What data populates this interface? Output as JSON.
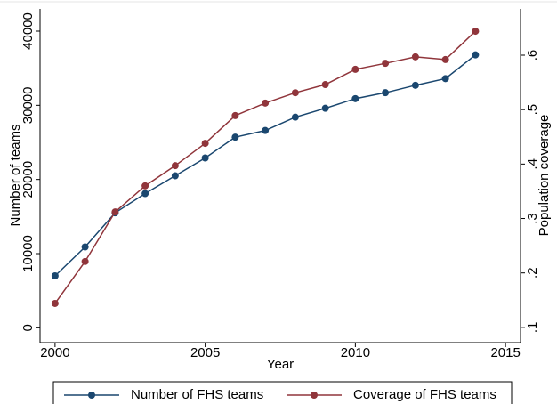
{
  "chart_data": {
    "type": "line",
    "x_label": "Year",
    "y_label": "Number of teams",
    "y2_label": "Population coverage",
    "x": [
      2000,
      2001,
      2002,
      2003,
      2004,
      2005,
      2006,
      2007,
      2008,
      2009,
      2010,
      2011,
      2012,
      2013,
      2014
    ],
    "series": [
      {
        "name": "Number of FHS teams",
        "color": "#1a476f",
        "axis": "y",
        "values": [
          7000,
          10900,
          15500,
          18100,
          20500,
          22900,
          25700,
          26600,
          28400,
          29600,
          30900,
          31700,
          32700,
          33600,
          36800
        ]
      },
      {
        "name": "Coverage of FHS teams",
        "color": "#90353b",
        "axis": "y2",
        "values": [
          0.144,
          0.221,
          0.312,
          0.36,
          0.397,
          0.438,
          0.489,
          0.512,
          0.531,
          0.546,
          0.574,
          0.585,
          0.597,
          0.592,
          0.644
        ]
      }
    ],
    "xlim": [
      1999.5,
      2015.5
    ],
    "xticks": [
      2000,
      2005,
      2010,
      2015
    ],
    "ylim": [
      -2000,
      43000
    ],
    "yticks": [
      0,
      10000,
      20000,
      30000,
      40000
    ],
    "y2lim": [
      0.072,
      0.685
    ],
    "y2ticks": [
      {
        "value": 0.1,
        "label": ".1"
      },
      {
        "value": 0.2,
        "label": ".2"
      },
      {
        "value": 0.3,
        "label": ".3"
      },
      {
        "value": 0.4,
        "label": ".4"
      },
      {
        "value": 0.5,
        "label": ".5"
      },
      {
        "value": 0.6,
        "label": ".6"
      }
    ],
    "legend": "bottom"
  }
}
